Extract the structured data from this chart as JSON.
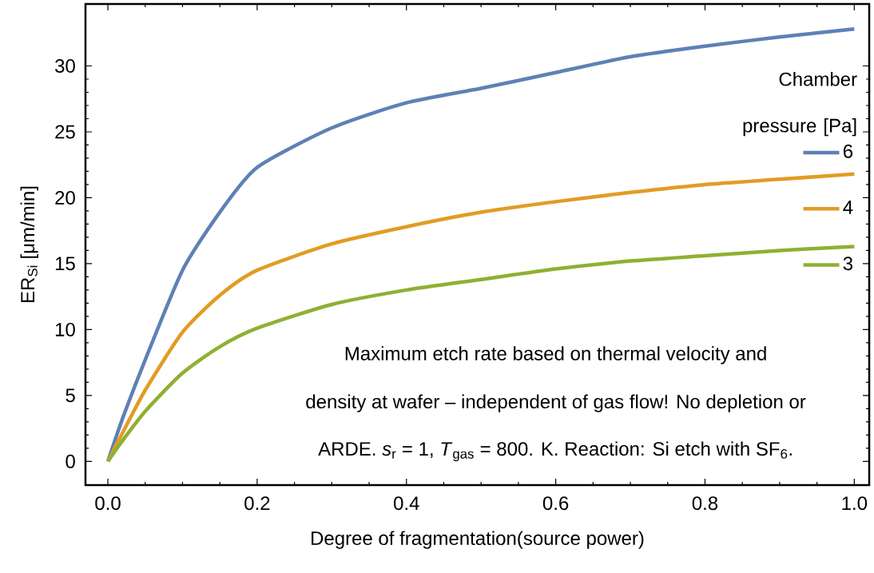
{
  "chart_data": {
    "type": "line",
    "xlabel": "Degree of fragmentation(source power)",
    "ylabel": "ER$_{Si}$ [μm/min]",
    "legend_title": "Chamber pressure [Pa]",
    "x": [
      0,
      0.02,
      0.05,
      0.1,
      0.15,
      0.2,
      0.3,
      0.4,
      0.5,
      0.6,
      0.7,
      0.8,
      0.9,
      1.0
    ],
    "series": [
      {
        "name": "6",
        "color": "#5e81b5",
        "values": [
          0,
          3.3,
          7.7,
          14.5,
          18.9,
          22.3,
          25.3,
          27.2,
          28.3,
          29.5,
          30.7,
          31.5,
          32.2,
          32.8
        ]
      },
      {
        "name": "4",
        "color": "#e19c24",
        "values": [
          0,
          2.2,
          5.4,
          9.8,
          12.6,
          14.5,
          16.5,
          17.8,
          18.9,
          19.7,
          20.4,
          21.0,
          21.4,
          21.8
        ]
      },
      {
        "name": "3",
        "color": "#8fb032",
        "values": [
          0,
          1.6,
          3.8,
          6.7,
          8.7,
          10.1,
          11.9,
          13.0,
          13.8,
          14.6,
          15.2,
          15.6,
          16.0,
          16.3
        ]
      }
    ],
    "xlim": [
      -0.03,
      1.02
    ],
    "ylim": [
      -1.8,
      34.7
    ],
    "xticks": [
      {
        "value": 0,
        "label": "0.0"
      },
      {
        "value": 0.2,
        "label": "0.2"
      },
      {
        "value": 0.4,
        "label": "0.4"
      },
      {
        "value": 0.6,
        "label": "0.6"
      },
      {
        "value": 0.8,
        "label": "0.8"
      },
      {
        "value": 1.0,
        "label": "1.0"
      }
    ],
    "yticks": [
      0,
      5,
      10,
      15,
      20,
      25,
      30
    ],
    "annotations": [
      "Maximum etch rate based on thermal velocity and",
      "density at wafer – independent of gas flow! No depletion or",
      "ARDE. *s*$_{r}$ = 1, *T*$_{gas}$ = 800. K. Reaction: Si etch with SF$_{6}$."
    ],
    "legend": "right",
    "grid": false,
    "marker": "none",
    "line_style": "solid"
  }
}
